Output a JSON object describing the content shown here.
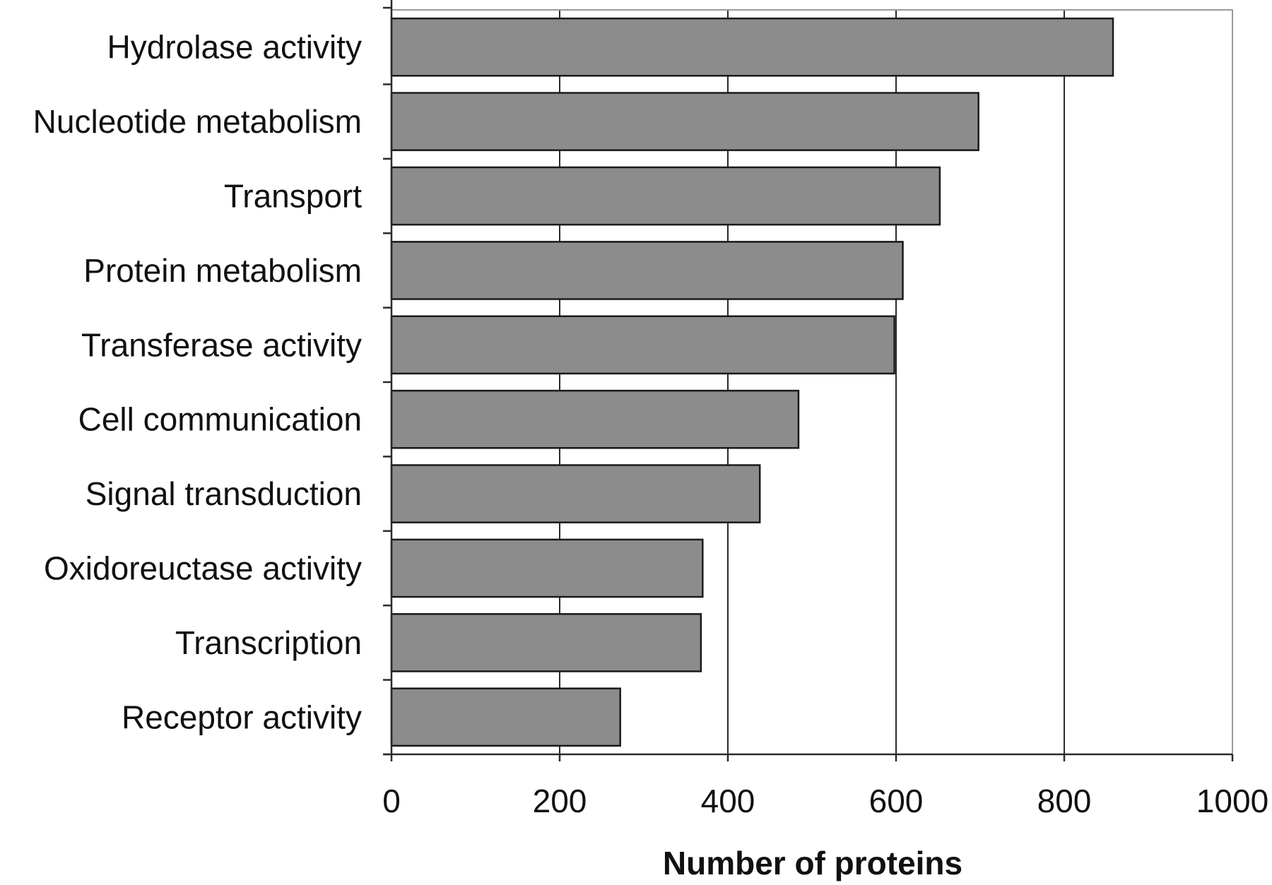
{
  "chart_data": {
    "type": "bar",
    "orientation": "horizontal",
    "categories": [
      "Hydrolase activity",
      "Nucleotide metabolism",
      "Transport",
      "Protein metabolism",
      "Transferase activity",
      "Cell communication",
      "Signal transduction",
      "Oxidoreuctase activity",
      "Transcription",
      "Receptor activity"
    ],
    "values": [
      858,
      698,
      652,
      608,
      598,
      484,
      438,
      370,
      368,
      272
    ],
    "xlabel": "Number of proteins",
    "ylabel": "",
    "title": "",
    "xlim": [
      0,
      1000
    ],
    "xticks": [
      "0",
      "200",
      "400",
      "600",
      "800",
      "1000"
    ],
    "grid": true,
    "legend": "none",
    "bar_color": "#8c8c8c"
  }
}
